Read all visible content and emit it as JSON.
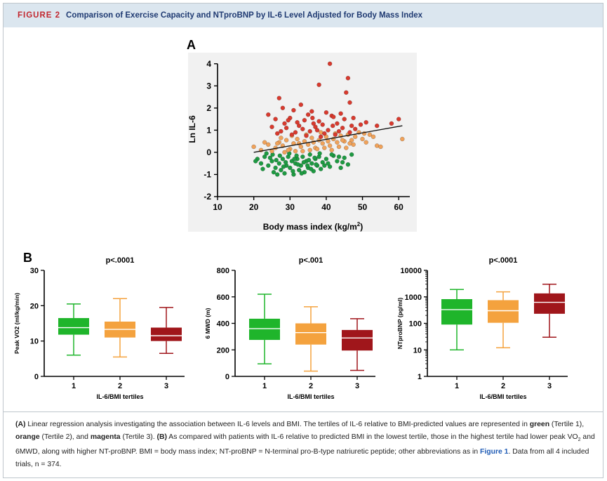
{
  "header": {
    "label": "FIGURE 2",
    "title": "Comparison of Exercise Capacity and NTproBNP by IL-6 Level Adjusted for Body Mass Index"
  },
  "panel_a": {
    "letter": "A",
    "ylabel": "Ln IL-6",
    "xlabel_main": "Body mass index (kg/m",
    "xlabel_sup": "2",
    "xlabel_close": ")",
    "x_ticks": [
      "10",
      "20",
      "30",
      "40",
      "50",
      "60"
    ],
    "y_ticks": [
      "-2",
      "-1",
      "0",
      "1",
      "2",
      "3",
      "4"
    ]
  },
  "panel_b": {
    "letter": "B",
    "xlabel": "IL-6/BMI tertiles",
    "x_ticks": [
      "1",
      "2",
      "3"
    ]
  },
  "caption": {
    "a_tag": "(A)",
    "a_text_1": " Linear regression analysis investigating the association between IL-6 levels and BMI. The tertiles of IL-6 relative to BMI-predicted values are represented in ",
    "green": "green",
    "green_rest": " (Tertile 1), ",
    "orange": "orange",
    "orange_rest": " (Tertile 2), and ",
    "magenta": "magenta",
    "magenta_rest": " (Tertile 3). ",
    "b_tag": "(B)",
    "b_text_1": " As compared with patients with IL-6 relative to predicted BMI in the lowest tertile, those in the highest tertile had lower peak VO",
    "b_sub_1": "2",
    "b_text_2": " and 6MWD, along with higher NT-proBNP. BMI = body mass index; NT-proBNP = N-terminal pro-B-type natriuretic peptide; other abbreviations as in ",
    "fig_link": "Figure 1",
    "b_text_3": ". Data from all 4 included trials, n = 374."
  },
  "colors": {
    "green": "#1fb52b",
    "orange": "#f4a23e",
    "darkred": "#a0161b",
    "scatter_red": "#d83a2e",
    "scatter_orange": "#f0a25a",
    "scatter_green": "#1e9a42"
  },
  "chart_data": [
    {
      "type": "scatter",
      "title": "",
      "xlabel": "Body mass index (kg/m2)",
      "ylabel": "Ln IL-6",
      "xlim": [
        10,
        65
      ],
      "ylim": [
        -2,
        4.5
      ],
      "regression": {
        "x": [
          20,
          61
        ],
        "y": [
          0.0,
          1.2
        ]
      },
      "series": [
        {
          "name": "Tertile 1",
          "color": "green",
          "points": [
            [
              21,
              -0.3
            ],
            [
              22,
              -0.5
            ],
            [
              23,
              -0.2
            ],
            [
              24,
              -0.6
            ],
            [
              25,
              -0.4
            ],
            [
              25.5,
              -0.9
            ],
            [
              26,
              -0.7
            ],
            [
              26.5,
              -1.0
            ],
            [
              27,
              -0.5
            ],
            [
              27.5,
              -0.8
            ],
            [
              28,
              -0.3
            ],
            [
              28.5,
              -0.95
            ],
            [
              29,
              -0.6
            ],
            [
              29.5,
              -0.2
            ],
            [
              30,
              -0.7
            ],
            [
              30.5,
              -0.4
            ],
            [
              31,
              -1.0
            ],
            [
              31.5,
              -0.5
            ],
            [
              32,
              -0.3
            ],
            [
              32.5,
              -0.8
            ],
            [
              33,
              -0.6
            ],
            [
              33.5,
              -0.2
            ],
            [
              34,
              -0.9
            ],
            [
              34.5,
              -0.4
            ],
            [
              35,
              -0.7
            ],
            [
              35.5,
              -0.1
            ],
            [
              36,
              -0.5
            ],
            [
              36.5,
              -0.85
            ],
            [
              37,
              -0.3
            ],
            [
              37.5,
              -0.6
            ],
            [
              38,
              -0.2
            ],
            [
              38.5,
              -0.75
            ],
            [
              39,
              -0.45
            ],
            [
              40,
              -0.3
            ],
            [
              41,
              -0.65
            ],
            [
              42,
              -0.15
            ],
            [
              43,
              -0.4
            ],
            [
              44,
              -0.7
            ],
            [
              45,
              -0.25
            ],
            [
              46,
              -0.55
            ],
            [
              47,
              -0.1
            ],
            [
              23.5,
              -0.05
            ],
            [
              27.2,
              -0.15
            ],
            [
              29.8,
              -0.05
            ],
            [
              32.2,
              -0.55
            ],
            [
              35.2,
              -0.35
            ],
            [
              38.2,
              -0.05
            ],
            [
              26.2,
              -0.35
            ],
            [
              30.8,
              -0.85
            ],
            [
              34.8,
              -0.6
            ],
            [
              22.5,
              -0.75
            ],
            [
              24.5,
              -0.25
            ],
            [
              28.2,
              -0.65
            ],
            [
              31.8,
              -0.15
            ],
            [
              33.8,
              -0.45
            ],
            [
              36.8,
              -0.25
            ],
            [
              39.5,
              -0.6
            ],
            [
              41.5,
              -0.1
            ],
            [
              43.5,
              -0.2
            ],
            [
              25.2,
              -0.1
            ],
            [
              28.8,
              -0.45
            ],
            [
              33.2,
              -0.95
            ],
            [
              37.2,
              -0.55
            ],
            [
              40.5,
              -0.5
            ],
            [
              20.5,
              -0.4
            ],
            [
              31.2,
              -0.3
            ],
            [
              35.8,
              -0.75
            ],
            [
              44.5,
              -0.45
            ]
          ]
        },
        {
          "name": "Tertile 2",
          "color": "orange",
          "points": [
            [
              20,
              0.25
            ],
            [
              22,
              0.1
            ],
            [
              24,
              0.35
            ],
            [
              26,
              0.2
            ],
            [
              27,
              0.45
            ],
            [
              28,
              0.3
            ],
            [
              29,
              0.55
            ],
            [
              30,
              0.15
            ],
            [
              31,
              0.4
            ],
            [
              32,
              0.6
            ],
            [
              33,
              0.25
            ],
            [
              34,
              0.5
            ],
            [
              35,
              0.35
            ],
            [
              36,
              0.65
            ],
            [
              37,
              0.2
            ],
            [
              38,
              0.55
            ],
            [
              39,
              0.4
            ],
            [
              40,
              0.7
            ],
            [
              41,
              0.3
            ],
            [
              42,
              0.6
            ],
            [
              43,
              0.45
            ],
            [
              44,
              0.75
            ],
            [
              45,
              0.5
            ],
            [
              46,
              0.8
            ],
            [
              47,
              0.55
            ],
            [
              48,
              0.7
            ],
            [
              49,
              0.9
            ],
            [
              50,
              0.6
            ],
            [
              51,
              0.45
            ],
            [
              52,
              0.8
            ],
            [
              53,
              0.7
            ],
            [
              54,
              0.3
            ],
            [
              55,
              0.25
            ],
            [
              61,
              0.6
            ],
            [
              25,
              0.05
            ],
            [
              29.5,
              0.1
            ],
            [
              33.5,
              0.05
            ],
            [
              37.5,
              0.15
            ],
            [
              41.5,
              0.1
            ],
            [
              45.5,
              0.2
            ],
            [
              30.5,
              0.75
            ],
            [
              34.5,
              0.8
            ],
            [
              38.5,
              0.9
            ],
            [
              42.5,
              0.85
            ],
            [
              27.5,
              0.65
            ],
            [
              31.5,
              0.05
            ],
            [
              35.5,
              0.1
            ],
            [
              39.5,
              0.2
            ],
            [
              43.5,
              0.25
            ],
            [
              47.5,
              0.35
            ],
            [
              32.5,
              0.4
            ],
            [
              36.5,
              0.45
            ],
            [
              40.5,
              0.5
            ],
            [
              44.5,
              0.55
            ],
            [
              26.5,
              0.4
            ],
            [
              23,
              0.45
            ],
            [
              28.5,
              0.0
            ],
            [
              46.5,
              0.4
            ],
            [
              50.5,
              0.85
            ]
          ]
        },
        {
          "name": "Tertile 3",
          "color": "magenta",
          "points": [
            [
              41,
              4.0
            ],
            [
              46,
              3.35
            ],
            [
              38,
              3.05
            ],
            [
              45.5,
              2.7
            ],
            [
              27,
              2.45
            ],
            [
              46.5,
              2.25
            ],
            [
              28,
              2.0
            ],
            [
              33,
              2.15
            ],
            [
              31,
              1.9
            ],
            [
              36,
              1.85
            ],
            [
              40,
              1.8
            ],
            [
              44,
              1.75
            ],
            [
              24,
              1.7
            ],
            [
              35,
              1.7
            ],
            [
              41.5,
              1.65
            ],
            [
              26,
              1.5
            ],
            [
              30,
              1.55
            ],
            [
              34,
              1.45
            ],
            [
              38,
              1.4
            ],
            [
              42,
              1.6
            ],
            [
              45,
              1.5
            ],
            [
              28.5,
              1.3
            ],
            [
              32,
              1.35
            ],
            [
              36.5,
              1.3
            ],
            [
              39,
              1.25
            ],
            [
              43,
              1.3
            ],
            [
              47,
              1.2
            ],
            [
              25,
              1.15
            ],
            [
              29,
              1.1
            ],
            [
              33.5,
              1.05
            ],
            [
              37,
              1.15
            ],
            [
              40.5,
              1.0
            ],
            [
              44.5,
              1.1
            ],
            [
              48,
              1.05
            ],
            [
              27.5,
              0.95
            ],
            [
              31.5,
              0.9
            ],
            [
              35.5,
              0.95
            ],
            [
              39.5,
              0.85
            ],
            [
              43.5,
              0.95
            ],
            [
              30.5,
              0.8
            ],
            [
              34.5,
              0.75
            ],
            [
              38.5,
              0.7
            ],
            [
              42.5,
              0.8
            ],
            [
              46.5,
              0.9
            ],
            [
              51,
              1.35
            ],
            [
              54,
              1.2
            ],
            [
              60,
              1.5
            ],
            [
              58,
              1.3
            ],
            [
              26.5,
              0.85
            ],
            [
              32.5,
              1.2
            ],
            [
              37.5,
              1.0
            ],
            [
              41.8,
              1.2
            ],
            [
              29.5,
              1.45
            ],
            [
              36.2,
              1.55
            ],
            [
              47.5,
              1.55
            ],
            [
              49.5,
              1.25
            ]
          ]
        }
      ]
    },
    {
      "type": "box",
      "title": "p<.0001",
      "xlabel": "IL-6/BMI tertiles",
      "ylabel": "Peak VO2 (ml/kg/min)",
      "ylim": [
        0,
        30
      ],
      "y_ticks": [
        "0",
        "10",
        "20",
        "30"
      ],
      "categories": [
        "1",
        "2",
        "3"
      ],
      "boxes": [
        {
          "whisker_low": 6,
          "q1": 11.8,
          "median": 13.8,
          "q3": 16.5,
          "whisker_high": 20.5,
          "color": "green"
        },
        {
          "whisker_low": 5.5,
          "q1": 11,
          "median": 13.3,
          "q3": 15.5,
          "whisker_high": 22,
          "color": "orange"
        },
        {
          "whisker_low": 6.5,
          "q1": 10,
          "median": 11.5,
          "q3": 13.8,
          "whisker_high": 19.5,
          "color": "darkred"
        }
      ]
    },
    {
      "type": "box",
      "title": "p<.001",
      "xlabel": "IL-6/BMI tertiles",
      "ylabel": "6 MWD (m)",
      "ylim": [
        0,
        800
      ],
      "y_ticks": [
        "0",
        "200",
        "400",
        "600",
        "800"
      ],
      "categories": [
        "1",
        "2",
        "3"
      ],
      "boxes": [
        {
          "whisker_low": 95,
          "q1": 275,
          "median": 360,
          "q3": 435,
          "whisker_high": 620,
          "color": "green"
        },
        {
          "whisker_low": 40,
          "q1": 240,
          "median": 330,
          "q3": 400,
          "whisker_high": 525,
          "color": "orange"
        },
        {
          "whisker_low": 45,
          "q1": 195,
          "median": 290,
          "q3": 350,
          "whisker_high": 435,
          "color": "darkred"
        }
      ]
    },
    {
      "type": "box",
      "title": "p<.0001",
      "xlabel": "IL-6/BMI tertiles",
      "ylabel": "NTproBNP (pg/ml)",
      "yscale": "log",
      "ylim": [
        1,
        10000
      ],
      "y_ticks": [
        "1",
        "10",
        "100",
        "1000",
        "10000"
      ],
      "categories": [
        "1",
        "2",
        "3"
      ],
      "boxes": [
        {
          "whisker_low": 10,
          "q1": 90,
          "median": 330,
          "q3": 820,
          "whisker_high": 1900,
          "color": "green"
        },
        {
          "whisker_low": 12,
          "q1": 105,
          "median": 300,
          "q3": 750,
          "whisker_high": 1550,
          "color": "orange"
        },
        {
          "whisker_low": 30,
          "q1": 230,
          "median": 620,
          "q3": 1350,
          "whisker_high": 3000,
          "color": "darkred"
        }
      ]
    }
  ]
}
